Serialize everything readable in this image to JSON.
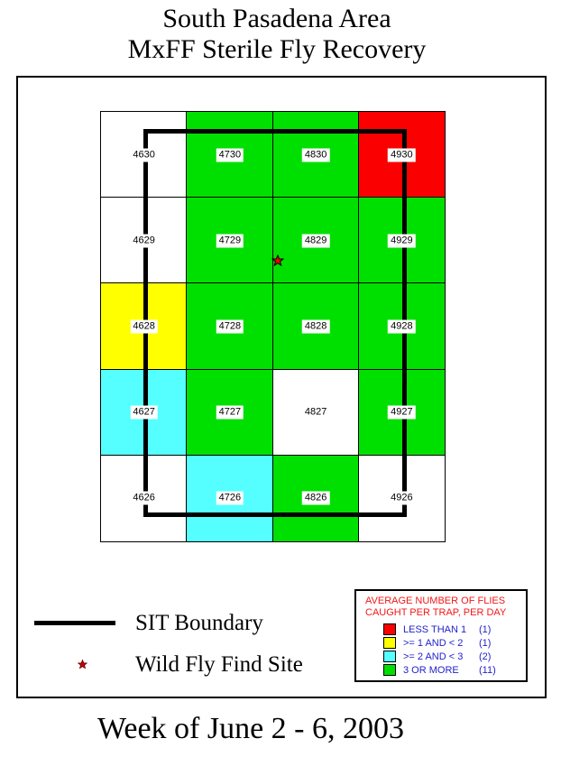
{
  "page": {
    "title_line1": "South Pasadena Area",
    "title_line2": "MxFF Sterile Fly Recovery",
    "footer": "Week of June 2 - 6, 2003"
  },
  "colors": {
    "green": "#00E000",
    "red": "#FB0000",
    "yellow": "#FFFF00",
    "cyan": "#55FFFF",
    "white": "#FFFFFF",
    "boundary": "#000000",
    "star_fill": "#E80000",
    "legend_title_red": "#F21818",
    "legend_text_blue": "#2222CC"
  },
  "map": {
    "cells": [
      {
        "id": "4630",
        "color": "white"
      },
      {
        "id": "4730",
        "color": "green"
      },
      {
        "id": "4830",
        "color": "green"
      },
      {
        "id": "4930",
        "color": "red"
      },
      {
        "id": "4629",
        "color": "white"
      },
      {
        "id": "4729",
        "color": "green"
      },
      {
        "id": "4829",
        "color": "green"
      },
      {
        "id": "4929",
        "color": "green"
      },
      {
        "id": "4628",
        "color": "yellow"
      },
      {
        "id": "4728",
        "color": "green"
      },
      {
        "id": "4828",
        "color": "green"
      },
      {
        "id": "4928",
        "color": "green"
      },
      {
        "id": "4627",
        "color": "cyan"
      },
      {
        "id": "4727",
        "color": "green"
      },
      {
        "id": "4827",
        "color": "white"
      },
      {
        "id": "4927",
        "color": "green"
      },
      {
        "id": "4626",
        "color": "white"
      },
      {
        "id": "4726",
        "color": "cyan"
      },
      {
        "id": "4826",
        "color": "green"
      },
      {
        "id": "4926",
        "color": "white"
      }
    ],
    "find_site_cell": "4829"
  },
  "map_key": {
    "boundary_label": "SIT Boundary",
    "find_site_label": "Wild Fly Find Site"
  },
  "legend": {
    "title_line1": "AVERAGE NUMBER OF FLIES",
    "title_line2": "CAUGHT PER TRAP, PER DAY",
    "items": [
      {
        "label": "LESS THAN 1",
        "count": "(1)",
        "color": "#FB0000"
      },
      {
        "label": ">= 1 AND < 2",
        "count": "(1)",
        "color": "#FFFF00"
      },
      {
        "label": ">= 2 AND < 3",
        "count": "(2)",
        "color": "#55FFFF"
      },
      {
        "label": "3 OR MORE",
        "count": "(11)",
        "color": "#00E000"
      }
    ]
  }
}
